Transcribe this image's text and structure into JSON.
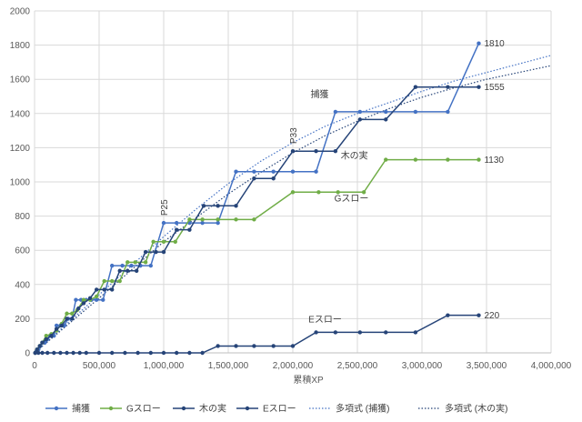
{
  "chart_data": {
    "type": "line",
    "xlabel": "累積XP",
    "ylabel": "",
    "xlim": [
      0,
      4000000
    ],
    "ylim": [
      0,
      2000
    ],
    "xticks": [
      0,
      500000,
      1000000,
      1500000,
      2000000,
      2500000,
      3000000,
      3500000,
      4000000
    ],
    "xtick_labels": [
      "0",
      "500,000",
      "1,000,000",
      "1,500,000",
      "2,000,000",
      "2,500,000",
      "3,000,000",
      "3,500,000",
      "4,000,000"
    ],
    "yticks": [
      0,
      200,
      400,
      600,
      800,
      1000,
      1200,
      1400,
      1600,
      1800,
      2000
    ],
    "ytick_labels": [
      "0",
      "200",
      "400",
      "600",
      "800",
      "1000",
      "1200",
      "1400",
      "1600",
      "1800",
      "2000"
    ],
    "grid": true,
    "legend_position": "bottom",
    "series": [
      {
        "name": "捕獲",
        "color": "#4472c4",
        "points": [
          [
            5000,
            0
          ],
          [
            15000,
            10
          ],
          [
            30000,
            20
          ],
          [
            45000,
            40
          ],
          [
            60000,
            60
          ],
          [
            80000,
            60
          ],
          [
            100000,
            80
          ],
          [
            120000,
            100
          ],
          [
            150000,
            100
          ],
          [
            170000,
            160
          ],
          [
            200000,
            160
          ],
          [
            230000,
            160
          ],
          [
            260000,
            200
          ],
          [
            290000,
            200
          ],
          [
            320000,
            310
          ],
          [
            360000,
            310
          ],
          [
            400000,
            310
          ],
          [
            440000,
            310
          ],
          [
            480000,
            310
          ],
          [
            530000,
            310
          ],
          [
            600000,
            510
          ],
          [
            680000,
            510
          ],
          [
            750000,
            510
          ],
          [
            820000,
            510
          ],
          [
            900000,
            510
          ],
          [
            1000000,
            760
          ],
          [
            1100000,
            760
          ],
          [
            1200000,
            760
          ],
          [
            1300000,
            760
          ],
          [
            1420000,
            760
          ],
          [
            1560000,
            1060
          ],
          [
            1700000,
            1060
          ],
          [
            1850000,
            1060
          ],
          [
            2000000,
            1060
          ],
          [
            2180000,
            1060
          ],
          [
            2330000,
            1410
          ],
          [
            2520000,
            1410
          ],
          [
            2720000,
            1410
          ],
          [
            2950000,
            1410
          ],
          [
            3200000,
            1410
          ],
          [
            3440000,
            1810
          ]
        ]
      },
      {
        "name": "Gスロー",
        "color": "#70ad47",
        "points": [
          [
            5000,
            0
          ],
          [
            20000,
            20
          ],
          [
            40000,
            40
          ],
          [
            60000,
            60
          ],
          [
            90000,
            100
          ],
          [
            130000,
            110
          ],
          [
            170000,
            130
          ],
          [
            210000,
            170
          ],
          [
            250000,
            230
          ],
          [
            290000,
            230
          ],
          [
            330000,
            250
          ],
          [
            380000,
            310
          ],
          [
            430000,
            310
          ],
          [
            480000,
            330
          ],
          [
            540000,
            420
          ],
          [
            600000,
            420
          ],
          [
            660000,
            420
          ],
          [
            720000,
            530
          ],
          [
            780000,
            530
          ],
          [
            860000,
            530
          ],
          [
            920000,
            650
          ],
          [
            1000000,
            650
          ],
          [
            1090000,
            650
          ],
          [
            1200000,
            780
          ],
          [
            1300000,
            780
          ],
          [
            1420000,
            780
          ],
          [
            1560000,
            780
          ],
          [
            1700000,
            780
          ],
          [
            2000000,
            940
          ],
          [
            2200000,
            940
          ],
          [
            2350000,
            940
          ],
          [
            2550000,
            940
          ],
          [
            2720000,
            1130
          ],
          [
            2950000,
            1130
          ],
          [
            3200000,
            1130
          ],
          [
            3440000,
            1130
          ]
        ]
      },
      {
        "name": "木の実",
        "color": "#264478",
        "points": [
          [
            5000,
            0
          ],
          [
            20000,
            20
          ],
          [
            40000,
            40
          ],
          [
            60000,
            60
          ],
          [
            90000,
            80
          ],
          [
            130000,
            100
          ],
          [
            170000,
            140
          ],
          [
            210000,
            160
          ],
          [
            250000,
            200
          ],
          [
            290000,
            200
          ],
          [
            340000,
            260
          ],
          [
            380000,
            290
          ],
          [
            430000,
            320
          ],
          [
            480000,
            370
          ],
          [
            540000,
            370
          ],
          [
            600000,
            370
          ],
          [
            660000,
            480
          ],
          [
            720000,
            480
          ],
          [
            790000,
            480
          ],
          [
            860000,
            590
          ],
          [
            940000,
            590
          ],
          [
            1000000,
            590
          ],
          [
            1100000,
            720
          ],
          [
            1200000,
            720
          ],
          [
            1310000,
            860
          ],
          [
            1420000,
            860
          ],
          [
            1560000,
            860
          ],
          [
            1700000,
            1020
          ],
          [
            1850000,
            1020
          ],
          [
            2000000,
            1180
          ],
          [
            2180000,
            1180
          ],
          [
            2330000,
            1180
          ],
          [
            2520000,
            1365
          ],
          [
            2720000,
            1365
          ],
          [
            2950000,
            1555
          ],
          [
            3200000,
            1555
          ],
          [
            3440000,
            1555
          ]
        ]
      },
      {
        "name": "Eスロー",
        "color": "#264478",
        "points": [
          [
            5000,
            0
          ],
          [
            30000,
            0
          ],
          [
            60000,
            0
          ],
          [
            100000,
            0
          ],
          [
            150000,
            0
          ],
          [
            200000,
            0
          ],
          [
            250000,
            0
          ],
          [
            300000,
            0
          ],
          [
            350000,
            0
          ],
          [
            400000,
            0
          ],
          [
            500000,
            0
          ],
          [
            600000,
            0
          ],
          [
            700000,
            0
          ],
          [
            800000,
            0
          ],
          [
            900000,
            0
          ],
          [
            1000000,
            0
          ],
          [
            1100000,
            0
          ],
          [
            1200000,
            0
          ],
          [
            1300000,
            0
          ],
          [
            1420000,
            40
          ],
          [
            1560000,
            40
          ],
          [
            1700000,
            40
          ],
          [
            1850000,
            40
          ],
          [
            2000000,
            40
          ],
          [
            2180000,
            120
          ],
          [
            2330000,
            120
          ],
          [
            2520000,
            120
          ],
          [
            2720000,
            120
          ],
          [
            2950000,
            120
          ],
          [
            3200000,
            220
          ],
          [
            3440000,
            220
          ]
        ]
      },
      {
        "name": "多項式 (捕獲)",
        "color": "#4472c4",
        "trendline": true,
        "points": [
          [
            0,
            0
          ],
          [
            250000,
            170
          ],
          [
            500000,
            340
          ],
          [
            750000,
            510
          ],
          [
            1000000,
            680
          ],
          [
            1250000,
            840
          ],
          [
            1500000,
            990
          ],
          [
            1750000,
            1120
          ],
          [
            2000000,
            1230
          ],
          [
            2250000,
            1325
          ],
          [
            2500000,
            1400
          ],
          [
            2750000,
            1465
          ],
          [
            3000000,
            1530
          ],
          [
            3250000,
            1590
          ],
          [
            3500000,
            1640
          ],
          [
            3750000,
            1690
          ],
          [
            4000000,
            1740
          ]
        ]
      },
      {
        "name": "多項式 (木の実)",
        "color": "#264478",
        "trendline": true,
        "points": [
          [
            0,
            0
          ],
          [
            250000,
            160
          ],
          [
            500000,
            320
          ],
          [
            750000,
            485
          ],
          [
            1000000,
            650
          ],
          [
            1250000,
            790
          ],
          [
            1500000,
            930
          ],
          [
            1750000,
            1055
          ],
          [
            2000000,
            1170
          ],
          [
            2250000,
            1270
          ],
          [
            2500000,
            1355
          ],
          [
            2750000,
            1430
          ],
          [
            3000000,
            1495
          ],
          [
            3250000,
            1550
          ],
          [
            3500000,
            1600
          ],
          [
            3750000,
            1640
          ],
          [
            4000000,
            1680
          ]
        ]
      }
    ],
    "annotations": [
      {
        "text": "1810",
        "x": 3440000,
        "y": 1810,
        "anchor": "right"
      },
      {
        "text": "1555",
        "x": 3440000,
        "y": 1555,
        "anchor": "right"
      },
      {
        "text": "1130",
        "x": 3440000,
        "y": 1130,
        "anchor": "right"
      },
      {
        "text": "220",
        "x": 3440000,
        "y": 220,
        "anchor": "right"
      },
      {
        "text": "捕獲",
        "x": 2320000,
        "y": 1420,
        "anchor": "above-left"
      },
      {
        "text": "木の実",
        "x": 2350000,
        "y": 1190,
        "anchor": "below-right"
      },
      {
        "text": "Gスロー",
        "x": 2300000,
        "y": 940,
        "anchor": "below-right"
      },
      {
        "text": "Eスロー",
        "x": 2250000,
        "y": 120,
        "anchor": "above-right"
      },
      {
        "text": "P25",
        "x": 1000000,
        "y": 760,
        "anchor": "vertical-above"
      },
      {
        "text": "P33",
        "x": 2000000,
        "y": 1180,
        "anchor": "vertical-above"
      }
    ]
  }
}
